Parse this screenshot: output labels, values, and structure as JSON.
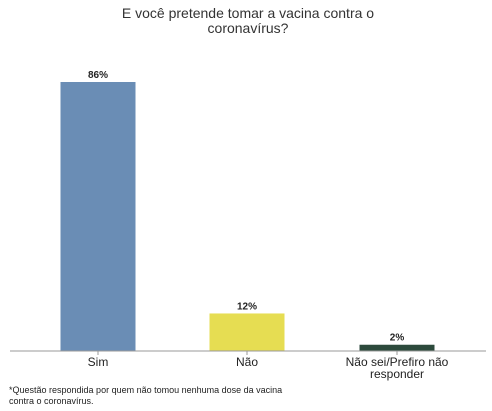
{
  "chart_data": {
    "type": "bar",
    "title": "E você pretende tomar a vacina contra o coronavírus?",
    "title_lines": [
      "E você pretende tomar a vacina contra o",
      "coronavírus?"
    ],
    "categories": [
      "Sim",
      "Não",
      "Não sei/Prefiro não responder"
    ],
    "category_label_lines": [
      [
        "Sim"
      ],
      [
        "Não"
      ],
      [
        "Não sei/Prefiro não",
        "responder"
      ]
    ],
    "values": [
      86,
      12,
      2
    ],
    "data_labels": [
      "86%",
      "12%",
      "2%"
    ],
    "colors": [
      "#6a8db5",
      "#e6dd52",
      "#2c4a3c"
    ],
    "axis_color": "#999999",
    "ylim": [
      0,
      86
    ],
    "grid": false,
    "y_axis_visible": false,
    "xlabel": "",
    "ylabel": ""
  },
  "footnote": "*Questão respondida por quem não tomou nenhuma dose da vacina contra o coronavírus."
}
